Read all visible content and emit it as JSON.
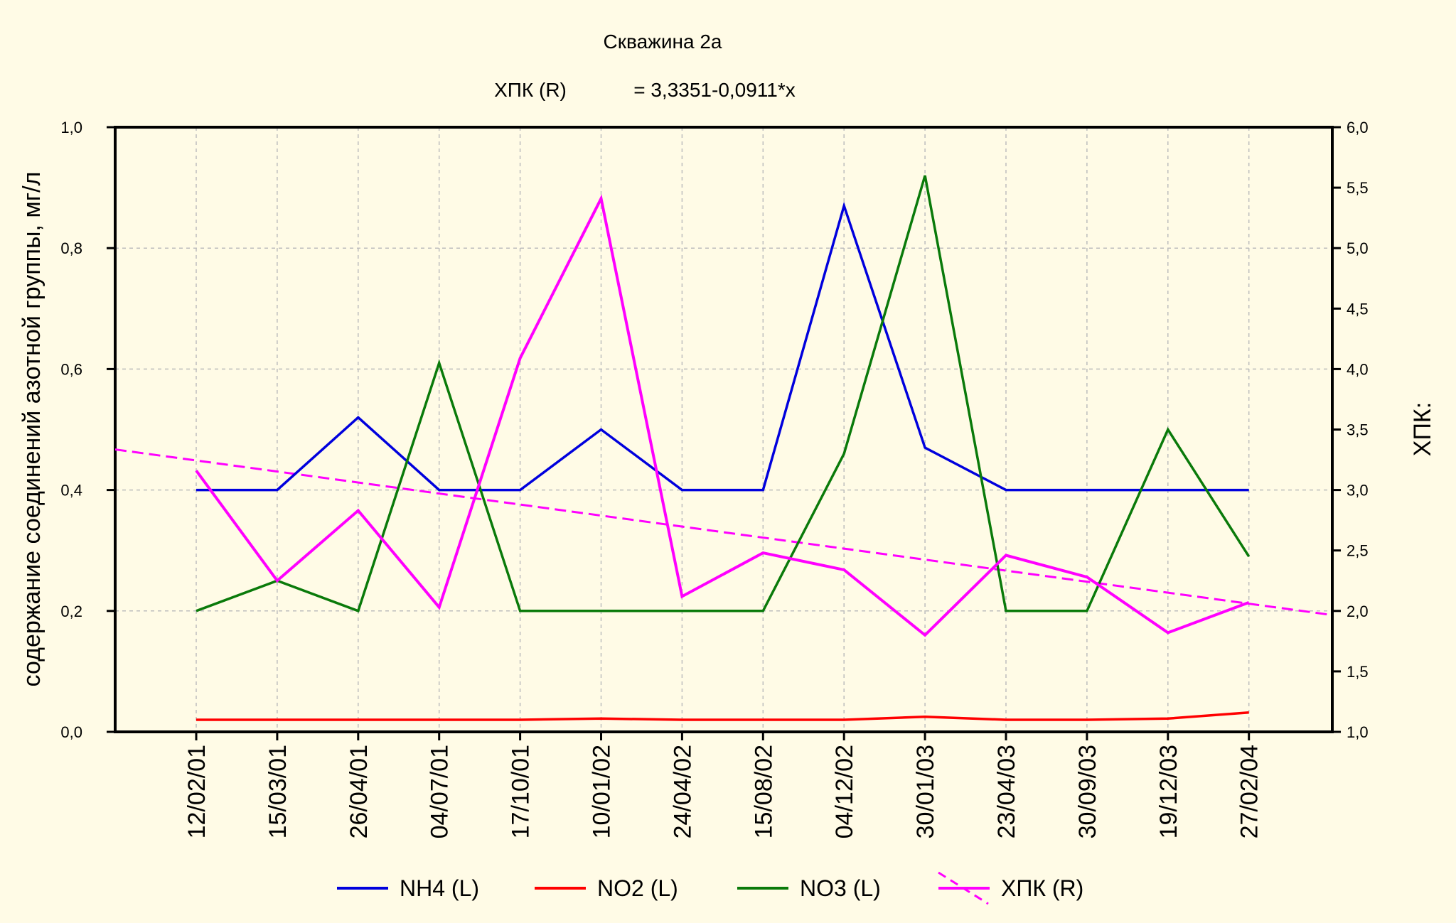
{
  "colors": {
    "NH4": "#0000dd",
    "NO2": "#ff0000",
    "NO3": "#0a7a0a",
    "XPK": "#ff00ff",
    "background": "#fffbe6",
    "grid": "#bdbdbd"
  },
  "chart_data": {
    "type": "line",
    "title": "Скважина 2а",
    "subtitle_left": "ХПК (R)",
    "subtitle_right": "= 3,3351-0,0911*x",
    "ylabel_left": "содержание соединений азотной группы, мг/л",
    "ylabel_right": "ХПК:",
    "ylim_left": [
      0,
      1.0
    ],
    "ylim_right": [
      1.0,
      6.0
    ],
    "yticks_left": [
      "0,0",
      "0,2",
      "0,4",
      "0,6",
      "0,8",
      "1,0"
    ],
    "yticks_left_values": [
      0,
      0.2,
      0.4,
      0.6,
      0.8,
      1.0
    ],
    "yticks_right": [
      "1,0",
      "1,5",
      "2,0",
      "2,5",
      "3,0",
      "3,5",
      "4,0",
      "4,5",
      "5,0",
      "5,5",
      "6,0"
    ],
    "yticks_right_values": [
      1.0,
      1.5,
      2.0,
      2.5,
      3.0,
      3.5,
      4.0,
      4.5,
      5.0,
      5.5,
      6.0
    ],
    "categories": [
      "12/02/01",
      "15/03/01",
      "26/04/01",
      "04/07/01",
      "17/10/01",
      "10/01/02",
      "24/04/02",
      "15/08/02",
      "04/12/02",
      "30/01/03",
      "23/04/03",
      "30/09/03",
      "19/12/03",
      "27/02/04"
    ],
    "grid": true,
    "legend_position": "bottom",
    "series": [
      {
        "name": "NH4 (L)",
        "key": "NH4",
        "axis": "left",
        "values": [
          0.4,
          0.4,
          0.52,
          0.4,
          0.4,
          0.5,
          0.4,
          0.4,
          0.87,
          0.47,
          0.4,
          0.4,
          0.4,
          0.4
        ]
      },
      {
        "name": "NO2 (L)",
        "key": "NO2",
        "axis": "left",
        "values": [
          0.02,
          0.02,
          0.02,
          0.02,
          0.02,
          0.022,
          0.02,
          0.02,
          0.02,
          0.025,
          0.02,
          0.02,
          0.022,
          0.032
        ]
      },
      {
        "name": "NO3 (L)",
        "key": "NO3",
        "axis": "left",
        "values": [
          0.2,
          0.25,
          0.2,
          0.61,
          0.2,
          0.2,
          0.2,
          0.2,
          0.46,
          0.92,
          0.2,
          0.2,
          0.5,
          0.29
        ]
      },
      {
        "name": "ХПК (R)",
        "key": "XPK",
        "axis": "right",
        "values": [
          3.16,
          2.25,
          2.83,
          2.03,
          4.09,
          5.41,
          2.12,
          2.48,
          2.34,
          1.8,
          2.46,
          2.28,
          1.82,
          2.07
        ]
      }
    ],
    "trendline": {
      "series": "XPK",
      "axis": "right",
      "intercept": 3.3351,
      "slope": -0.0911,
      "x_start": 0,
      "x_end": 15
    }
  }
}
